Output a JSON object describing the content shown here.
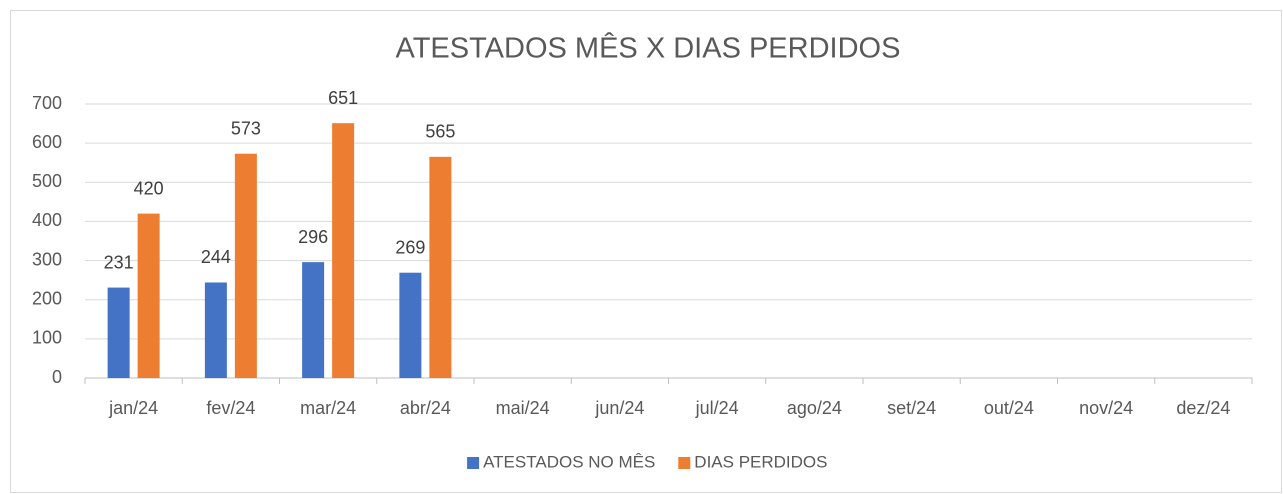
{
  "chart_data": {
    "type": "bar",
    "title": "ATESTADOS MÊS X DIAS PERDIDOS",
    "categories": [
      "jan/24",
      "fev/24",
      "mar/24",
      "abr/24",
      "mai/24",
      "jun/24",
      "jul/24",
      "ago/24",
      "set/24",
      "out/24",
      "nov/24",
      "dez/24"
    ],
    "series": [
      {
        "name": "ATESTADOS NO MÊS",
        "color": "#4472c4",
        "values": [
          231,
          244,
          296,
          269,
          null,
          null,
          null,
          null,
          null,
          null,
          null,
          null
        ]
      },
      {
        "name": "DIAS PERDIDOS",
        "color": "#ed7d31",
        "values": [
          420,
          573,
          651,
          565,
          null,
          null,
          null,
          null,
          null,
          null,
          null,
          null
        ]
      }
    ],
    "ylim": [
      0,
      700
    ],
    "yticks": [
      0,
      100,
      200,
      300,
      400,
      500,
      600,
      700
    ],
    "grid": true,
    "legend": "bottom"
  }
}
